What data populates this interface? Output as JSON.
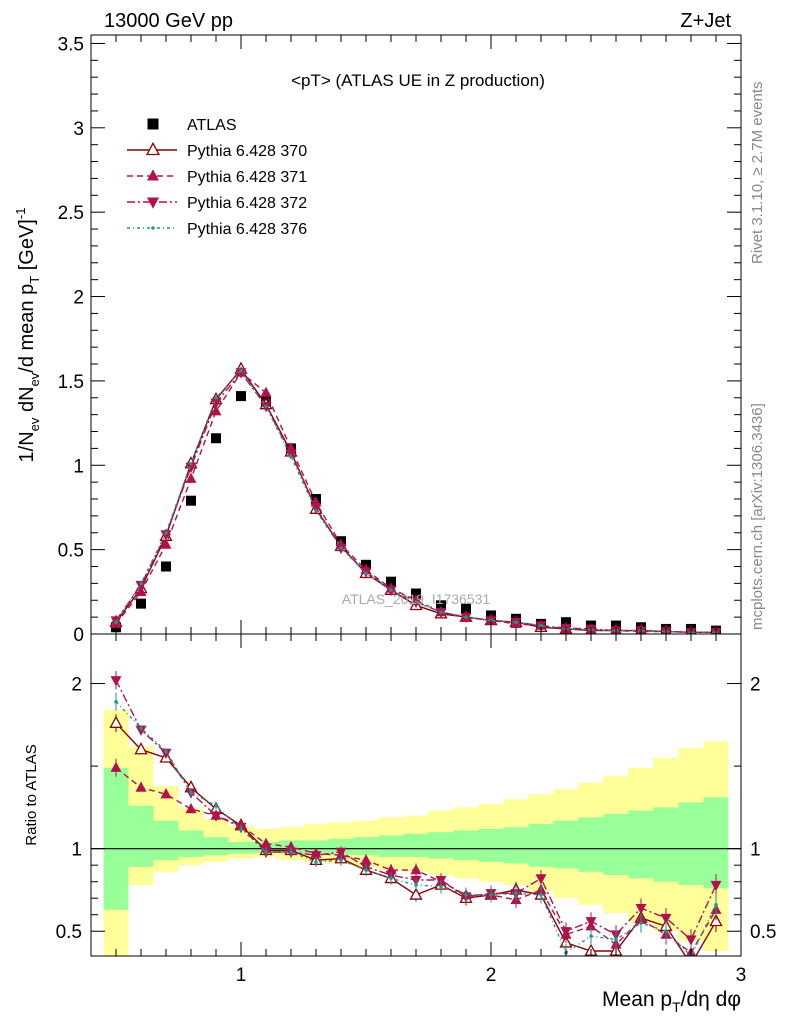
{
  "header": {
    "left": "13000 GeV pp",
    "right": "Z+Jet"
  },
  "side_labels": {
    "rivet": "Rivet 3.1.10, ≥ 2.7M events",
    "mcplots": "mcplots.cern.ch [arXiv:1306.3436]"
  },
  "watermark": "ATLAS_2019_I1736531",
  "chart_data": [
    {
      "type": "scatter",
      "title": "<pT> (ATLAS UE in Z production)",
      "ylabel": "1/N_ev dN_ev/d mean p_T [GeV]^-1",
      "xlim": [
        0.4,
        3.0
      ],
      "ylim": [
        0,
        3.55
      ],
      "y_ticks": [
        "0",
        "0.5",
        "1",
        "1.5",
        "2",
        "2.5",
        "3",
        "3.5"
      ],
      "y_tick_values": [
        0,
        0.5,
        1,
        1.5,
        2,
        2.5,
        3,
        3.5
      ],
      "legend_position": "top-left",
      "x": [
        0.5,
        0.6,
        0.7,
        0.8,
        0.9,
        1.0,
        1.1,
        1.2,
        1.3,
        1.4,
        1.5,
        1.6,
        1.7,
        1.8,
        1.9,
        2.0,
        2.1,
        2.2,
        2.3,
        2.4,
        2.5,
        2.6,
        2.7,
        2.8,
        2.9
      ],
      "series": [
        {
          "name": "ATLAS",
          "color": "#000000",
          "style": "data",
          "values": [
            0.04,
            0.18,
            0.4,
            0.79,
            1.16,
            1.41,
            1.38,
            1.1,
            0.8,
            0.55,
            0.41,
            0.31,
            0.24,
            0.17,
            0.15,
            0.11,
            0.09,
            0.06,
            0.07,
            0.05,
            0.05,
            0.04,
            0.03,
            0.03,
            0.02
          ]
        },
        {
          "name": "Pythia 6.428 370",
          "color": "#8b0000",
          "style": "solid",
          "marker": "triangle-open",
          "values": [
            0.07,
            0.27,
            0.58,
            1.01,
            1.39,
            1.57,
            1.36,
            1.08,
            0.74,
            0.52,
            0.36,
            0.26,
            0.17,
            0.12,
            0.1,
            0.08,
            0.07,
            0.04,
            0.03,
            0.02,
            0.02,
            0.02,
            0.015,
            0.01,
            0.01
          ]
        },
        {
          "name": "Pythia 6.428 371",
          "color": "#b0124e",
          "style": "dashed",
          "marker": "triangle-up",
          "values": [
            0.06,
            0.25,
            0.53,
            0.92,
            1.32,
            1.55,
            1.43,
            1.1,
            0.78,
            0.53,
            0.38,
            0.27,
            0.2,
            0.13,
            0.1,
            0.08,
            0.06,
            0.05,
            0.03,
            0.025,
            0.02,
            0.015,
            0.015,
            0.01,
            0.01
          ]
        },
        {
          "name": "Pythia 6.428 372",
          "color": "#b0124e",
          "style": "dashdot",
          "marker": "triangle-down",
          "values": [
            0.08,
            0.29,
            0.59,
            0.99,
            1.37,
            1.55,
            1.35,
            1.07,
            0.75,
            0.51,
            0.37,
            0.26,
            0.19,
            0.13,
            0.1,
            0.08,
            0.07,
            0.05,
            0.035,
            0.03,
            0.02,
            0.02,
            0.015,
            0.01,
            0.01
          ]
        },
        {
          "name": "Pythia 6.428 376",
          "color": "#1a9a8a",
          "style": "dotdash",
          "marker": "dot",
          "values": [
            0.07,
            0.3,
            0.6,
            1.01,
            1.4,
            1.56,
            1.35,
            1.05,
            0.73,
            0.51,
            0.36,
            0.26,
            0.19,
            0.13,
            0.1,
            0.08,
            0.07,
            0.05,
            0.03,
            0.025,
            0.02,
            0.02,
            0.015,
            0.01,
            0.01
          ]
        }
      ]
    },
    {
      "type": "line",
      "ylabel": "Ratio to ATLAS",
      "xlabel": "Mean p_T/dη dφ",
      "xlim": [
        0.4,
        3.0
      ],
      "ylim": [
        0.35,
        2.3
      ],
      "x_ticks": [
        "1",
        "2",
        "3"
      ],
      "x_tick_values": [
        1,
        2,
        3
      ],
      "y_ticks": [
        "0.5",
        "1",
        "2"
      ],
      "y_tick_values": [
        0.5,
        1,
        2
      ],
      "x": [
        0.5,
        0.6,
        0.7,
        0.8,
        0.9,
        1.0,
        1.1,
        1.2,
        1.3,
        1.4,
        1.5,
        1.6,
        1.7,
        1.8,
        1.9,
        2.0,
        2.1,
        2.2,
        2.3,
        2.4,
        2.5,
        2.6,
        2.7,
        2.8,
        2.9
      ],
      "bands": {
        "inner_green": [
          [
            0.63,
            1.49
          ],
          [
            0.89,
            1.26
          ],
          [
            0.93,
            1.17
          ],
          [
            0.95,
            1.11
          ],
          [
            0.96,
            1.07
          ],
          [
            0.97,
            1.04
          ],
          [
            0.975,
            1.04
          ],
          [
            0.97,
            1.05
          ],
          [
            0.97,
            1.05
          ],
          [
            0.96,
            1.06
          ],
          [
            0.96,
            1.07
          ],
          [
            0.95,
            1.08
          ],
          [
            0.95,
            1.09
          ],
          [
            0.94,
            1.1
          ],
          [
            0.93,
            1.11
          ],
          [
            0.92,
            1.12
          ],
          [
            0.91,
            1.13
          ],
          [
            0.89,
            1.15
          ],
          [
            0.88,
            1.17
          ],
          [
            0.86,
            1.19
          ],
          [
            0.84,
            1.21
          ],
          [
            0.82,
            1.23
          ],
          [
            0.8,
            1.25
          ],
          [
            0.78,
            1.28
          ],
          [
            0.76,
            1.31
          ]
        ],
        "outer_yellow": [
          [
            0.3,
            1.84
          ],
          [
            0.78,
            1.62
          ],
          [
            0.86,
            1.38
          ],
          [
            0.9,
            1.25
          ],
          [
            0.92,
            1.18
          ],
          [
            0.94,
            1.14
          ],
          [
            0.95,
            1.12
          ],
          [
            0.93,
            1.13
          ],
          [
            0.92,
            1.15
          ],
          [
            0.91,
            1.16
          ],
          [
            0.89,
            1.17
          ],
          [
            0.87,
            1.19
          ],
          [
            0.86,
            1.2
          ],
          [
            0.84,
            1.23
          ],
          [
            0.82,
            1.25
          ],
          [
            0.8,
            1.27
          ],
          [
            0.78,
            1.3
          ],
          [
            0.74,
            1.33
          ],
          [
            0.7,
            1.36
          ],
          [
            0.66,
            1.4
          ],
          [
            0.61,
            1.44
          ],
          [
            0.55,
            1.49
          ],
          [
            0.5,
            1.55
          ],
          [
            0.44,
            1.61
          ],
          [
            0.38,
            1.65
          ]
        ]
      },
      "series": [
        {
          "name": "Pythia 6.428 370",
          "color": "#8b0000",
          "style": "solid",
          "marker": "triangle-open",
          "values": [
            1.76,
            1.6,
            1.55,
            1.37,
            1.24,
            1.14,
            0.99,
            0.99,
            0.93,
            0.94,
            0.87,
            0.82,
            0.72,
            0.78,
            0.7,
            0.72,
            0.75,
            0.72,
            0.43,
            0.38,
            0.38,
            0.58,
            0.53,
            0.3,
            0.56
          ]
        },
        {
          "name": "Pythia 6.428 371",
          "color": "#b0124e",
          "style": "dashed",
          "marker": "triangle-up",
          "values": [
            1.49,
            1.37,
            1.33,
            1.24,
            1.2,
            1.14,
            1.03,
            1.01,
            0.97,
            0.96,
            0.93,
            0.87,
            0.87,
            0.8,
            0.72,
            0.72,
            0.69,
            0.75,
            0.48,
            0.53,
            0.42,
            0.57,
            0.48,
            0.37,
            0.63
          ]
        },
        {
          "name": "Pythia 6.428 372",
          "color": "#b0124e",
          "style": "dashdot",
          "marker": "triangle-down",
          "values": [
            2.02,
            1.72,
            1.58,
            1.34,
            1.2,
            1.13,
            0.98,
            0.98,
            0.96,
            0.98,
            0.89,
            0.84,
            0.81,
            0.81,
            0.71,
            0.73,
            0.73,
            0.82,
            0.5,
            0.56,
            0.48,
            0.64,
            0.58,
            0.45,
            0.78
          ]
        },
        {
          "name": "Pythia 6.428 376",
          "color": "#1a9a8a",
          "style": "dotdash",
          "marker": "dot",
          "values": [
            1.89,
            1.73,
            1.59,
            1.34,
            1.26,
            1.12,
            0.98,
            0.98,
            0.92,
            0.93,
            0.87,
            0.82,
            0.78,
            0.77,
            0.72,
            0.72,
            0.73,
            0.72,
            0.37,
            0.47,
            0.45,
            0.55,
            0.5,
            0.35,
            0.66
          ]
        }
      ]
    }
  ]
}
